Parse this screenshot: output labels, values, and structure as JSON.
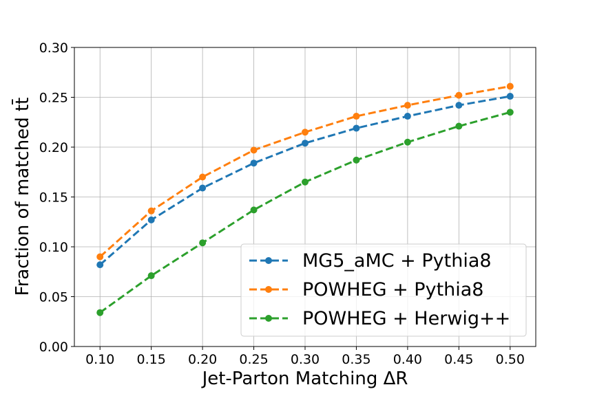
{
  "chart_data": {
    "type": "line",
    "xlabel": "Jet-Parton Matching ΔR",
    "ylabel": "Fraction of matched tt̄",
    "xlim": [
      0.075,
      0.525
    ],
    "ylim": [
      0.0,
      0.3
    ],
    "x_ticks": [
      "0.10",
      "0.15",
      "0.20",
      "0.25",
      "0.30",
      "0.35",
      "0.40",
      "0.45",
      "0.50"
    ],
    "y_ticks": [
      "0.00",
      "0.05",
      "0.10",
      "0.15",
      "0.20",
      "0.25",
      "0.30"
    ],
    "grid": true,
    "legend_position": "lower-right",
    "x": [
      0.1,
      0.15,
      0.2,
      0.25,
      0.3,
      0.35,
      0.4,
      0.45,
      0.5
    ],
    "series": [
      {
        "name": "MG5_aMC + Pythia8",
        "color": "#1f77b4",
        "values": [
          0.082,
          0.127,
          0.159,
          0.184,
          0.204,
          0.219,
          0.231,
          0.242,
          0.251
        ]
      },
      {
        "name": "POWHEG + Pythia8",
        "color": "#ff7f0e",
        "values": [
          0.09,
          0.136,
          0.17,
          0.197,
          0.215,
          0.231,
          0.242,
          0.252,
          0.261
        ]
      },
      {
        "name": "POWHEG + Herwig++",
        "color": "#2ca02c",
        "values": [
          0.034,
          0.071,
          0.104,
          0.137,
          0.165,
          0.187,
          0.205,
          0.221,
          0.235
        ]
      }
    ]
  }
}
